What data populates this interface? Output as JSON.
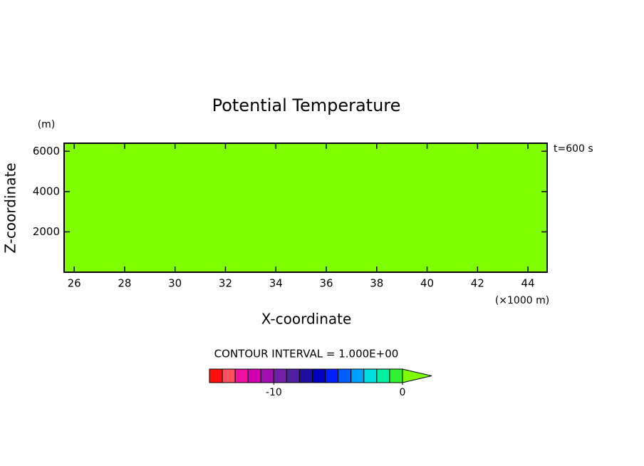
{
  "chart_data": {
    "type": "contour",
    "title": "Potential Temperature",
    "x_label": "X-coordinate",
    "x_unit": "(×1000 m)",
    "y_label": "Z-coordinate",
    "y_unit": "(m)",
    "annotation": "t=600 s",
    "xlim": [
      25.6,
      44.76
    ],
    "xticks": [
      26,
      28,
      30,
      32,
      34,
      36,
      38,
      40,
      42,
      44
    ],
    "ylim": [
      0,
      6400
    ],
    "yticks": [
      2000,
      4000,
      6000
    ],
    "field_color": "#7fff00",
    "colorbar": {
      "title": "CONTOUR INTERVAL = 1.000E+00",
      "levels": [
        -15,
        -14,
        -13,
        -12,
        -11,
        -10,
        -9,
        -8,
        -7,
        -6,
        -5,
        -4,
        -3,
        -2,
        -1,
        0
      ],
      "colors": [
        "#ff1010",
        "#ff5060",
        "#f010a0",
        "#d000b0",
        "#a010b0",
        "#7020a8",
        "#5020a0",
        "#2010a0",
        "#0000c0",
        "#0020ff",
        "#0060ff",
        "#00a0ff",
        "#00e0e0",
        "#00f0a0",
        "#30f030",
        "#7fff00"
      ],
      "ticks": [
        -10,
        0
      ]
    }
  }
}
